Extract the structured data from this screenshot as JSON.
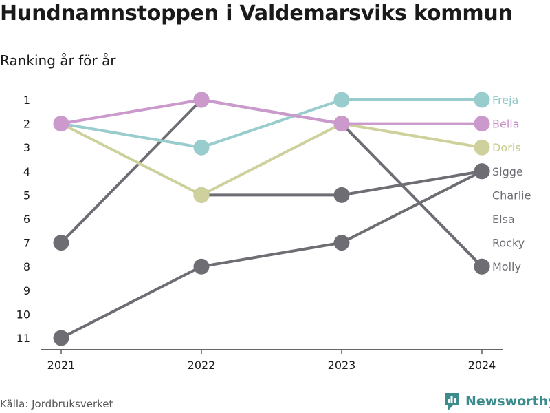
{
  "title": "Hundnamnstoppen i Valdemarsviks kommun",
  "subtitle": "Ranking år för år",
  "source": "Källa: Jordbruksverket",
  "brand": {
    "name": "Newsworthy",
    "icon": "newsworthy-logo-icon",
    "color": "#3d8c8c"
  },
  "chart_data": {
    "type": "line",
    "x": [
      "2021",
      "2022",
      "2023",
      "2024"
    ],
    "yticks": [
      1,
      2,
      3,
      4,
      5,
      6,
      7,
      8,
      9,
      10,
      11
    ],
    "ylim": [
      1,
      11
    ],
    "y_inverted": true,
    "grid": false,
    "series": [
      {
        "name": "Sigge",
        "values": [
          11,
          8,
          7,
          4
        ],
        "color": "#6e6d73",
        "label_color": "#6e6d73"
      },
      {
        "name": "Charlie",
        "values": [
          7,
          1,
          2,
          8
        ],
        "color": "#6e6d73",
        "label_color": "#6e6d73"
      },
      {
        "name": "Elsa",
        "values": [
          null,
          5,
          5,
          4
        ],
        "color": "#6e6d73",
        "label_color": "#6e6d73"
      },
      {
        "name": "Rocky",
        "values": [
          null,
          null,
          null,
          null
        ],
        "color": "#6e6d73",
        "label_color": "#6e6d73"
      },
      {
        "name": "Molly",
        "values": [
          null,
          null,
          2,
          8
        ],
        "color": "#6e6d73",
        "label_color": "#6e6d73"
      },
      {
        "name": "Doris",
        "values": [
          2,
          5,
          2,
          3
        ],
        "color": "#cfd19c",
        "label_color": "#c8c98a"
      },
      {
        "name": "Freja",
        "values": [
          2,
          3,
          1,
          1
        ],
        "color": "#99cccc",
        "label_color": "#8cc7c7"
      },
      {
        "name": "Bella",
        "values": [
          2,
          1,
          2,
          2
        ],
        "color": "#cc99cc",
        "label_color": "#c48ec4"
      }
    ],
    "end_labels": [
      {
        "name": "Freja",
        "rank": 1,
        "color": "#8cc7c7"
      },
      {
        "name": "Bella",
        "rank": 2,
        "color": "#c48ec4"
      },
      {
        "name": "Doris",
        "rank": 3,
        "color": "#c8c98a"
      },
      {
        "name": "Sigge",
        "rank": 4,
        "color": "#6e6d73"
      },
      {
        "name": "Charlie",
        "rank": 5,
        "color": "#6e6d73"
      },
      {
        "name": "Elsa",
        "rank": 6,
        "color": "#6e6d73"
      },
      {
        "name": "Rocky",
        "rank": 7,
        "color": "#6e6d73"
      },
      {
        "name": "Molly",
        "rank": 8,
        "color": "#6e6d73"
      }
    ]
  }
}
